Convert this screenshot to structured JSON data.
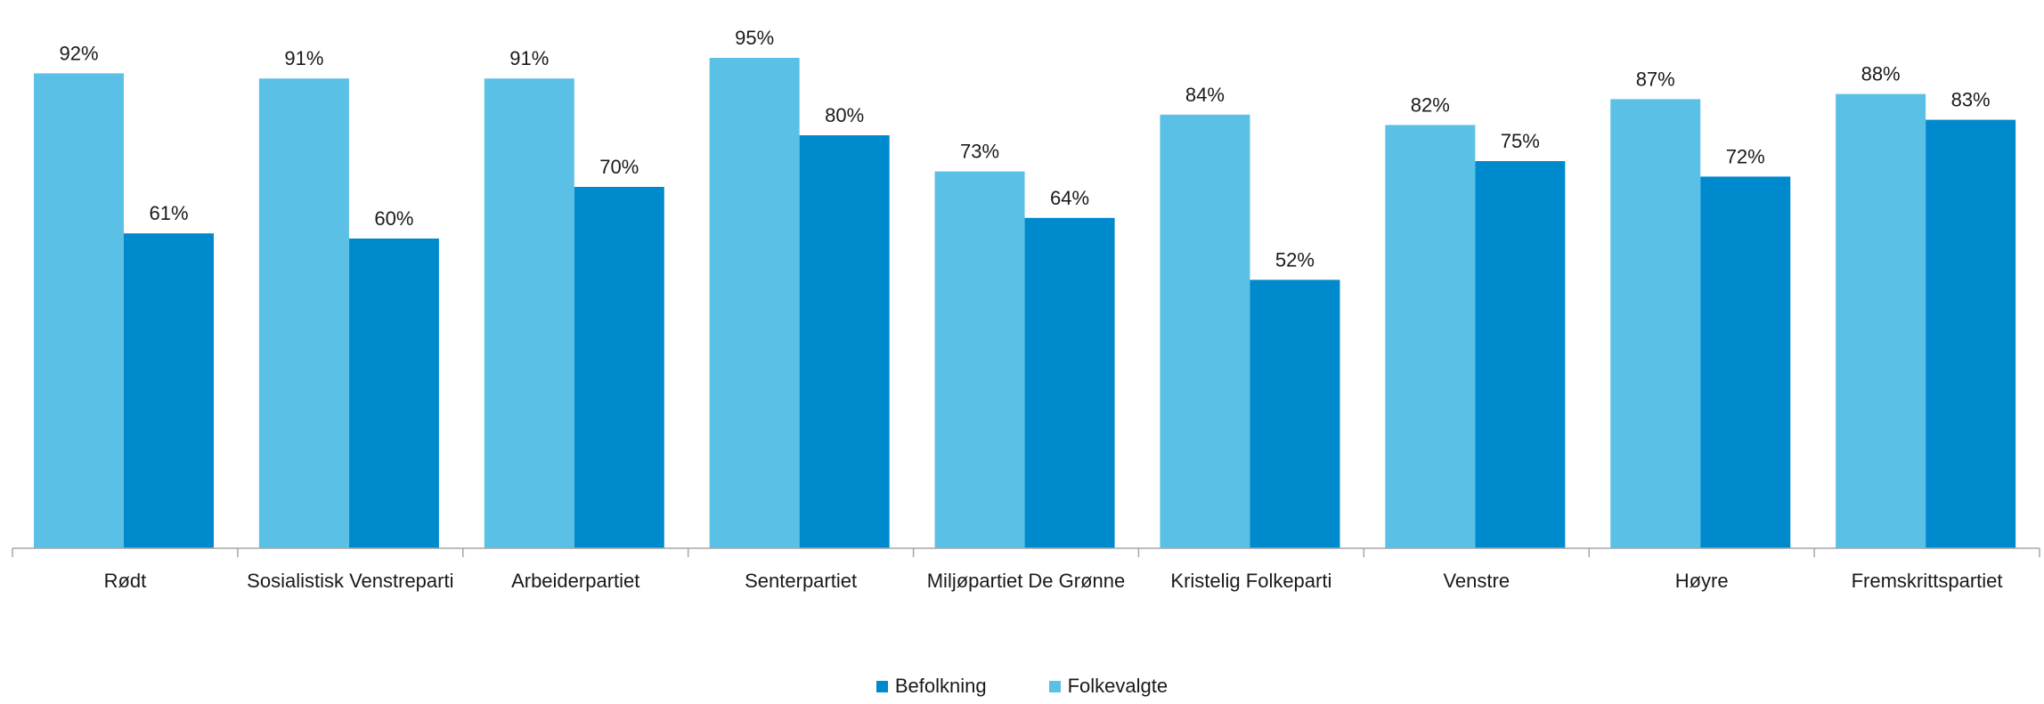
{
  "chart_data": {
    "type": "bar",
    "categories": [
      "Rødt",
      "Sosialistisk Venstreparti",
      "Arbeiderpartiet",
      "Senterpartiet",
      "Miljøpartiet De Grønne",
      "Kristelig Folkeparti",
      "Venstre",
      "Høyre",
      "Fremskrittspartiet"
    ],
    "series": [
      {
        "name": "Folkevalgte",
        "color": "#5bc0e6",
        "values": [
          92,
          91,
          91,
          95,
          73,
          84,
          82,
          87,
          88
        ]
      },
      {
        "name": "Befolkning",
        "color": "#008ace",
        "values": [
          61,
          60,
          70,
          80,
          64,
          52,
          75,
          72,
          83
        ]
      }
    ],
    "value_suffix": "%",
    "ylim": [
      0,
      100
    ],
    "grid": false,
    "legend": {
      "placement": "bottom-center",
      "order": [
        "Befolkning",
        "Folkevalgte"
      ]
    }
  }
}
